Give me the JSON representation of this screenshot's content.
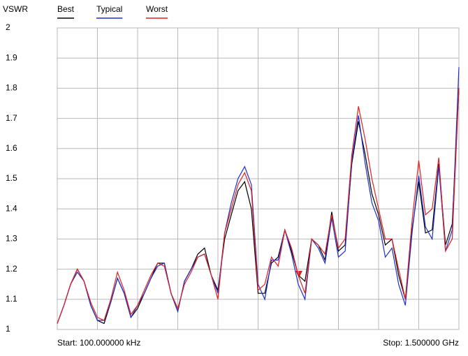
{
  "chart_data": {
    "type": "line",
    "y_label": "VSWR",
    "start_label": "Start: 100.000000 kHz",
    "stop_label": "Stop: 1.500000 GHz",
    "x": [
      0.0001,
      0.025,
      0.05,
      0.075,
      0.1,
      0.125,
      0.15,
      0.175,
      0.2,
      0.225,
      0.25,
      0.275,
      0.3,
      0.325,
      0.35,
      0.375,
      0.4,
      0.425,
      0.45,
      0.475,
      0.5,
      0.525,
      0.55,
      0.575,
      0.6,
      0.625,
      0.65,
      0.675,
      0.7,
      0.725,
      0.75,
      0.775,
      0.8,
      0.825,
      0.85,
      0.875,
      0.9,
      0.925,
      0.95,
      0.975,
      1.0,
      1.025,
      1.05,
      1.075,
      1.1,
      1.125,
      1.15,
      1.175,
      1.2,
      1.225,
      1.25,
      1.275,
      1.3,
      1.325,
      1.35,
      1.375,
      1.4,
      1.425,
      1.45,
      1.475,
      1.5
    ],
    "series": [
      {
        "name": "Best",
        "color": "#000000",
        "values": [
          1.02,
          1.08,
          1.15,
          1.2,
          1.16,
          1.08,
          1.03,
          1.02,
          1.09,
          1.17,
          1.12,
          1.04,
          1.07,
          1.12,
          1.17,
          1.22,
          1.22,
          1.12,
          1.06,
          1.16,
          1.2,
          1.25,
          1.27,
          1.18,
          1.13,
          1.3,
          1.38,
          1.46,
          1.49,
          1.4,
          1.12,
          1.12,
          1.22,
          1.24,
          1.33,
          1.26,
          1.18,
          1.16,
          1.3,
          1.28,
          1.23,
          1.39,
          1.26,
          1.28,
          1.55,
          1.69,
          1.58,
          1.45,
          1.38,
          1.28,
          1.3,
          1.18,
          1.1,
          1.33,
          1.49,
          1.32,
          1.33,
          1.55,
          1.28,
          1.35,
          1.8
        ]
      },
      {
        "name": "Typical",
        "color": "#1f2fd0",
        "values": [
          1.02,
          1.08,
          1.15,
          1.19,
          1.16,
          1.08,
          1.03,
          1.03,
          1.09,
          1.17,
          1.12,
          1.04,
          1.08,
          1.12,
          1.17,
          1.21,
          1.22,
          1.12,
          1.06,
          1.16,
          1.2,
          1.24,
          1.25,
          1.18,
          1.12,
          1.32,
          1.42,
          1.5,
          1.54,
          1.48,
          1.15,
          1.1,
          1.23,
          1.23,
          1.33,
          1.25,
          1.15,
          1.1,
          1.3,
          1.27,
          1.22,
          1.37,
          1.24,
          1.26,
          1.56,
          1.71,
          1.55,
          1.42,
          1.36,
          1.24,
          1.27,
          1.15,
          1.08,
          1.32,
          1.51,
          1.34,
          1.3,
          1.54,
          1.26,
          1.33,
          1.87
        ]
      },
      {
        "name": "Worst",
        "color": "#e02020",
        "values": [
          1.02,
          1.08,
          1.15,
          1.2,
          1.16,
          1.09,
          1.04,
          1.03,
          1.1,
          1.19,
          1.13,
          1.05,
          1.08,
          1.13,
          1.18,
          1.22,
          1.21,
          1.12,
          1.07,
          1.15,
          1.19,
          1.24,
          1.25,
          1.18,
          1.1,
          1.32,
          1.4,
          1.48,
          1.52,
          1.46,
          1.13,
          1.15,
          1.24,
          1.21,
          1.33,
          1.27,
          1.18,
          1.12,
          1.3,
          1.28,
          1.25,
          1.38,
          1.27,
          1.3,
          1.58,
          1.74,
          1.63,
          1.5,
          1.4,
          1.3,
          1.3,
          1.2,
          1.1,
          1.36,
          1.56,
          1.38,
          1.4,
          1.57,
          1.26,
          1.3,
          1.8
        ]
      }
    ],
    "xlim": [
      0.0001,
      1.5
    ],
    "xticks": [
      0.0001,
      0.15,
      0.3,
      0.45,
      0.6,
      0.75,
      0.9,
      1.05,
      1.2,
      1.35,
      1.5
    ],
    "ylim": [
      1,
      2
    ],
    "yticks": [
      1,
      1.1,
      1.2,
      1.3,
      1.4,
      1.5,
      1.6,
      1.7,
      1.8,
      1.9,
      2
    ],
    "grid": true
  }
}
